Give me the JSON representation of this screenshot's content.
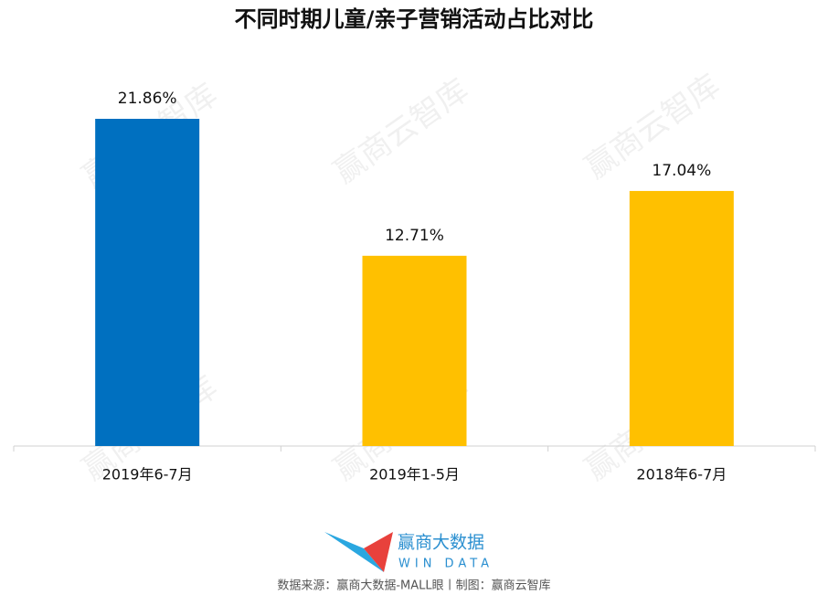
{
  "chart_data": {
    "type": "bar",
    "title": "不同时期儿童/亲子营销活动占比对比",
    "categories": [
      "2019年6-7月",
      "2019年1-5月",
      "2018年6-7月"
    ],
    "values": [
      21.86,
      12.71,
      17.04
    ],
    "value_labels": [
      "21.86%",
      "12.71%",
      "17.04%"
    ],
    "colors": [
      "#0070c0",
      "#ffc000",
      "#ffc000"
    ],
    "watermark": "赢商云智库",
    "logo_text": "赢商大数据",
    "logo_subtext": "WIN DATA",
    "source": "数据来源：赢商大数据-MALL眼丨制图：赢商云智库"
  }
}
